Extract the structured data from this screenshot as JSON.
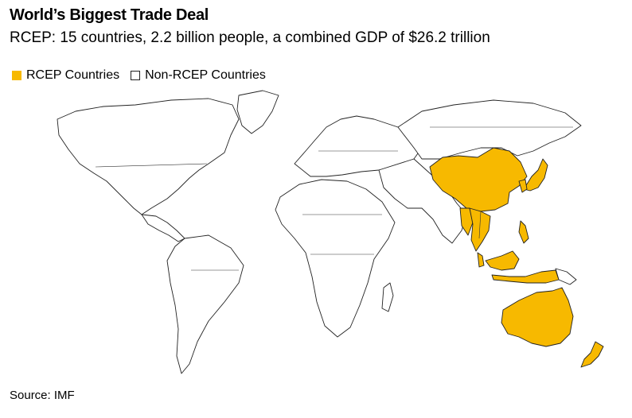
{
  "title": "World’s Biggest Trade Deal",
  "subtitle": "RCEP: 15 countries, 2.2 billion people, a combined GDP of $26.2 trillion",
  "legend": {
    "rcep": {
      "label": "RCEP Countries",
      "color": "#f7b900"
    },
    "non_rcep": {
      "label": "Non-RCEP Countries",
      "color": "#ffffff"
    }
  },
  "map": {
    "rcep_members": [
      "China",
      "Japan",
      "South Korea",
      "Myanmar",
      "Laos",
      "Thailand",
      "Cambodia",
      "Vietnam",
      "Malaysia",
      "Singapore",
      "Brunei",
      "Indonesia",
      "Philippines",
      "Australia",
      "New Zealand"
    ],
    "highlight_color": "#f7b900",
    "land_color": "#ffffff",
    "border_color": "#222222"
  },
  "source": "Source: IMF"
}
